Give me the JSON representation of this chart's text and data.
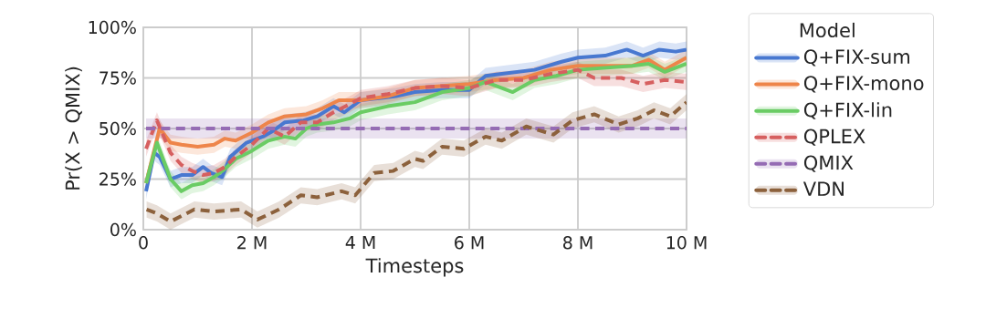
{
  "chart_data": {
    "type": "line",
    "xlabel": "Timesteps",
    "ylabel": "Pr(X > QMIX)",
    "legend_title": "Model",
    "xlim": [
      0,
      10000000
    ],
    "ylim": [
      0,
      100
    ],
    "xticks": [
      0,
      {
        "value": 2000000,
        "label": "2 M"
      },
      {
        "value": 4000000,
        "label": "4 M"
      },
      {
        "value": 6000000,
        "label": "6 M"
      },
      {
        "value": 8000000,
        "label": "8 M"
      },
      {
        "value": 10000000,
        "label": "10 M"
      }
    ],
    "yticks": [
      {
        "value": 0,
        "label": "0%"
      },
      {
        "value": 25,
        "label": "25%"
      },
      {
        "value": 50,
        "label": "50%"
      },
      {
        "value": 75,
        "label": "75%"
      },
      {
        "value": 100,
        "label": "100%"
      }
    ],
    "grid": true,
    "legend": "right",
    "marker": "none",
    "series": [
      {
        "name": "Q+FIX-sum",
        "color": "#4878d0",
        "line_style": "solid",
        "x": [
          50000,
          200000,
          300000,
          500000,
          700000,
          900000,
          1100000,
          1250000,
          1450000,
          1600000,
          1900000,
          2200000,
          2400000,
          2600000,
          2950000,
          3200000,
          3500000,
          3700000,
          4000000,
          4350000,
          4650000,
          5000000,
          5500000,
          6000000,
          6300000,
          6600000,
          7200000,
          7700000,
          8000000,
          8500000,
          8900000,
          9200000,
          9500000,
          9800000,
          10000000
        ],
        "values": [
          19,
          38,
          36,
          25,
          27,
          27,
          31,
          28,
          26,
          36,
          43,
          46,
          49,
          53,
          54,
          56,
          61,
          58,
          64,
          65,
          66,
          68,
          69,
          69,
          76,
          77,
          79,
          83,
          85,
          86,
          89,
          86,
          89,
          88,
          89
        ],
        "lower": [
          15,
          34,
          32,
          21,
          23,
          23,
          27,
          24,
          22,
          32,
          39,
          42,
          45,
          49,
          50,
          52,
          57,
          54,
          60,
          61,
          62,
          64,
          65,
          65,
          72,
          73,
          75,
          79,
          81,
          82,
          85,
          82,
          85,
          84,
          85
        ],
        "upper": [
          23,
          42,
          40,
          29,
          31,
          31,
          35,
          32,
          30,
          40,
          47,
          50,
          53,
          57,
          58,
          60,
          65,
          62,
          68,
          69,
          70,
          72,
          73,
          73,
          80,
          81,
          83,
          87,
          89,
          90,
          93,
          90,
          93,
          92,
          93
        ]
      },
      {
        "name": "Q+FIX-mono",
        "color": "#ee854a",
        "line_style": "solid",
        "x": [
          50000,
          300000,
          500000,
          700000,
          1000000,
          1300000,
          1500000,
          1700000,
          2000000,
          2300000,
          2600000,
          3000000,
          3300000,
          3600000,
          4000000,
          4500000,
          5000000,
          5500000,
          6000000,
          6500000,
          7000000,
          7500000,
          8000000,
          8500000,
          9000000,
          9300000,
          9600000,
          10000000
        ],
        "values": [
          23,
          50,
          43,
          42,
          41,
          42,
          45,
          44,
          48,
          53,
          56,
          57,
          60,
          64,
          64,
          66,
          70,
          71,
          72,
          74,
          75,
          79,
          81,
          81,
          81,
          84,
          79,
          85
        ],
        "lower": [
          19,
          46,
          39,
          38,
          37,
          38,
          41,
          40,
          44,
          49,
          52,
          53,
          56,
          60,
          60,
          62,
          66,
          67,
          68,
          70,
          71,
          75,
          77,
          77,
          77,
          80,
          75,
          81
        ],
        "upper": [
          27,
          54,
          47,
          46,
          45,
          46,
          49,
          48,
          52,
          57,
          60,
          61,
          64,
          68,
          68,
          70,
          74,
          75,
          76,
          78,
          79,
          83,
          85,
          85,
          85,
          88,
          83,
          89
        ]
      },
      {
        "name": "Q+FIX-lin",
        "color": "#6acc64",
        "line_style": "solid",
        "x": [
          50000,
          250000,
          500000,
          700000,
          900000,
          1100000,
          1300000,
          1500000,
          1700000,
          2000000,
          2300000,
          2600000,
          2800000,
          3000000,
          3200000,
          3500000,
          3800000,
          4000000,
          4500000,
          5000000,
          5500000,
          6000000,
          6300000,
          6800000,
          7200000,
          7600000,
          8000000,
          8500000,
          9000000,
          9300000,
          9600000,
          10000000
        ],
        "values": [
          23,
          43,
          25,
          19,
          22,
          23,
          26,
          30,
          35,
          39,
          44,
          46,
          45,
          50,
          52,
          53,
          55,
          58,
          61,
          63,
          68,
          70,
          73,
          68,
          74,
          76,
          79,
          80,
          81,
          82,
          78,
          82
        ],
        "lower": [
          19,
          39,
          21,
          15,
          18,
          19,
          22,
          26,
          31,
          35,
          40,
          42,
          41,
          46,
          48,
          49,
          51,
          54,
          57,
          59,
          64,
          66,
          69,
          64,
          70,
          72,
          75,
          76,
          77,
          78,
          74,
          78
        ],
        "upper": [
          27,
          47,
          29,
          23,
          26,
          27,
          30,
          34,
          39,
          43,
          48,
          50,
          49,
          54,
          56,
          57,
          59,
          62,
          65,
          67,
          72,
          74,
          77,
          72,
          78,
          80,
          83,
          84,
          85,
          86,
          82,
          86
        ]
      },
      {
        "name": "QPLEX",
        "color": "#d65f5f",
        "line_style": "dashed",
        "x": [
          50000,
          250000,
          500000,
          700000,
          900000,
          1100000,
          1300000,
          1500000,
          1700000,
          2000000,
          2300000,
          2600000,
          2900000,
          3200000,
          3500000,
          3800000,
          4000000,
          4500000,
          5000000,
          5500000,
          6000000,
          6500000,
          7000000,
          7500000,
          8000000,
          8300000,
          8800000,
          9200000,
          9600000,
          10000000
        ],
        "values": [
          40,
          54,
          38,
          32,
          29,
          27,
          28,
          31,
          36,
          42,
          50,
          46,
          53,
          53,
          58,
          62,
          65,
          67,
          70,
          71,
          70,
          74,
          74,
          77,
          79,
          75,
          75,
          72,
          74,
          73
        ],
        "lower": [
          36,
          50,
          34,
          28,
          25,
          23,
          24,
          27,
          32,
          38,
          46,
          42,
          49,
          49,
          54,
          58,
          61,
          63,
          66,
          67,
          66,
          70,
          70,
          73,
          75,
          71,
          71,
          68,
          70,
          69
        ],
        "upper": [
          44,
          58,
          42,
          36,
          33,
          31,
          32,
          35,
          40,
          46,
          54,
          50,
          57,
          57,
          62,
          66,
          69,
          71,
          74,
          75,
          74,
          78,
          78,
          81,
          83,
          79,
          79,
          76,
          78,
          77
        ]
      },
      {
        "name": "QMIX",
        "color": "#956cb4",
        "line_style": "dashed",
        "x": [
          50000,
          10000000
        ],
        "values": [
          50,
          50
        ],
        "lower": [
          45,
          45
        ],
        "upper": [
          55,
          55
        ]
      },
      {
        "name": "VDN",
        "color": "#8c613c",
        "line_style": "dashed",
        "x": [
          60000,
          250000,
          500000,
          940000,
          1300000,
          1800000,
          2100000,
          2500000,
          2900000,
          3200000,
          3650000,
          3900000,
          4250000,
          4600000,
          5000000,
          5150000,
          5500000,
          5900000,
          6300000,
          6600000,
          7050000,
          7550000,
          7900000,
          8300000,
          8750000,
          9100000,
          9400000,
          9700000,
          10000000
        ],
        "values": [
          10,
          8,
          4,
          10,
          9,
          10,
          5,
          10,
          17,
          16,
          19,
          17,
          28,
          29,
          35,
          34,
          41,
          40,
          46,
          44,
          51,
          47,
          54,
          57,
          52,
          55,
          59,
          56,
          63
        ],
        "lower": [
          6,
          4,
          0,
          6,
          5,
          6,
          1,
          6,
          13,
          12,
          15,
          13,
          24,
          25,
          31,
          30,
          37,
          36,
          42,
          40,
          47,
          43,
          50,
          53,
          48,
          51,
          55,
          52,
          59
        ],
        "upper": [
          14,
          12,
          8,
          14,
          13,
          14,
          9,
          14,
          21,
          20,
          23,
          21,
          32,
          33,
          39,
          38,
          45,
          44,
          50,
          48,
          55,
          51,
          58,
          61,
          56,
          59,
          63,
          60,
          67
        ]
      }
    ]
  }
}
